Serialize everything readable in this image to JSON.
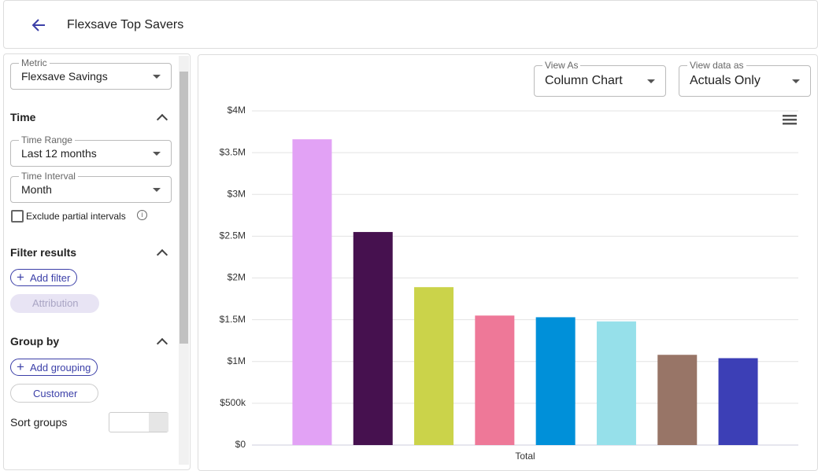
{
  "header": {
    "title": "Flexsave Top Savers"
  },
  "sidebar": {
    "metric": {
      "label": "Metric",
      "value": "Flexsave Savings"
    },
    "time": {
      "title": "Time",
      "range": {
        "label": "Time Range",
        "value": "Last 12 months"
      },
      "interval": {
        "label": "Time Interval",
        "value": "Month"
      },
      "exclude": "Exclude partial intervals"
    },
    "filter": {
      "title": "Filter results",
      "add": "Add filter",
      "chip": "Attribution"
    },
    "group": {
      "title": "Group by",
      "add": "Add grouping",
      "chip": "Customer"
    },
    "sort": {
      "label": "Sort groups"
    }
  },
  "controls": {
    "view_as": {
      "label": "View As",
      "value": "Column Chart"
    },
    "view_data": {
      "label": "View data as",
      "value": "Actuals Only"
    }
  },
  "chart_data": {
    "type": "bar",
    "categories": [
      "Total"
    ],
    "series": [
      {
        "color": "#e2a2f5",
        "values": [
          3660000
        ]
      },
      {
        "color": "#46114f",
        "values": [
          2550000
        ]
      },
      {
        "color": "#cbd34a",
        "values": [
          1890000
        ]
      },
      {
        "color": "#ee7898",
        "values": [
          1550000
        ]
      },
      {
        "color": "#0090d9",
        "values": [
          1530000
        ]
      },
      {
        "color": "#96e0ea",
        "values": [
          1480000
        ]
      },
      {
        "color": "#987567",
        "values": [
          1080000
        ]
      },
      {
        "color": "#3c3fb6",
        "values": [
          1040000
        ]
      }
    ],
    "ylim": [
      0,
      4000000
    ],
    "yticks": [
      {
        "value": 0,
        "label": "$0"
      },
      {
        "value": 500000,
        "label": "$500k"
      },
      {
        "value": 1000000,
        "label": "$1M"
      },
      {
        "value": 1500000,
        "label": "$1.5M"
      },
      {
        "value": 2000000,
        "label": "$2M"
      },
      {
        "value": 2500000,
        "label": "$2.5M"
      },
      {
        "value": 3000000,
        "label": "$3M"
      },
      {
        "value": 3500000,
        "label": "$3.5M"
      },
      {
        "value": 4000000,
        "label": "$4M"
      }
    ],
    "grid": true
  }
}
